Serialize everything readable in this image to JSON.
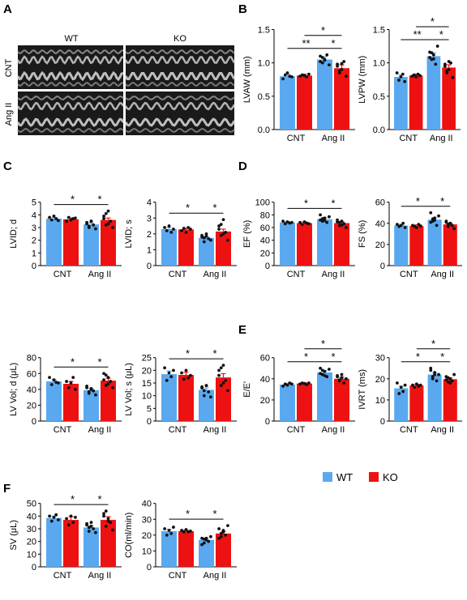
{
  "colors": {
    "wt": "#5aa9f0",
    "ko": "#ee1111",
    "dot": "#111111"
  },
  "legend": {
    "wt": "WT",
    "ko": "KO"
  },
  "echo": {
    "label": "A",
    "col_labels": [
      "WT",
      "KO"
    ],
    "row_labels": [
      "CNT",
      "Ang II"
    ]
  },
  "categories": [
    "CNT",
    "Ang II"
  ],
  "chart_data": [
    {
      "id": "lvaw",
      "panel": "B",
      "type": "bar",
      "ylabel": "LVAW (mm)",
      "ylim": [
        0,
        1.5
      ],
      "yticks": [
        0.0,
        0.5,
        1.0,
        1.5
      ],
      "tickfmt": "0.0",
      "series": [
        {
          "name": "WT",
          "values": [
            0.8,
            1.05
          ],
          "err": [
            0.03,
            0.04
          ]
        },
        {
          "name": "KO",
          "values": [
            0.81,
            0.92
          ],
          "err": [
            0.02,
            0.05
          ]
        }
      ],
      "points": [
        [
          [
            0.76,
            0.82,
            0.85,
            0.8,
            0.79
          ],
          [
            1.1,
            1.0,
            1.05,
            1.12,
            0.97,
            1.02,
            1.08,
            1.04
          ]
        ],
        [
          [
            0.8,
            0.82,
            0.81,
            0.79,
            0.83
          ],
          [
            0.98,
            0.85,
            0.9,
            1.02,
            0.8,
            0.95,
            0.88,
            0.99
          ]
        ]
      ],
      "sigs": [
        {
          "a": 0,
          "b": 2,
          "text": "**",
          "level": 0
        },
        {
          "a": 2,
          "b": 3,
          "text": "*",
          "level": 0
        },
        {
          "a": 1,
          "b": 3,
          "text": "*",
          "level": 1
        }
      ]
    },
    {
      "id": "lvpw",
      "panel": "",
      "type": "bar",
      "ylabel": "LVPW (mm)",
      "ylim": [
        0,
        1.5
      ],
      "yticks": [
        0.0,
        0.5,
        1.0,
        1.5
      ],
      "tickfmt": "0.0",
      "series": [
        {
          "name": "WT",
          "values": [
            0.79,
            1.1
          ],
          "err": [
            0.03,
            0.05
          ]
        },
        {
          "name": "KO",
          "values": [
            0.81,
            0.93
          ],
          "err": [
            0.02,
            0.04
          ]
        }
      ],
      "points": [
        [
          [
            0.85,
            0.74,
            0.79,
            0.83,
            0.72
          ],
          [
            1.16,
            1.05,
            1.12,
            0.98,
            1.25,
            1.08,
            1.15,
            1.06
          ]
        ],
        [
          [
            0.8,
            0.82,
            0.79,
            0.83,
            0.81
          ],
          [
            0.98,
            0.85,
            0.9,
            1.0,
            0.78,
            0.95,
            0.88,
            1.02
          ]
        ]
      ],
      "sigs": [
        {
          "a": 0,
          "b": 2,
          "text": "**",
          "level": 0
        },
        {
          "a": 2,
          "b": 3,
          "text": "*",
          "level": 0
        },
        {
          "a": 1,
          "b": 3,
          "text": "*",
          "level": 1
        }
      ]
    },
    {
      "id": "lvidd",
      "panel": "C",
      "type": "bar",
      "ylabel": "LVID; d",
      "ylim": [
        0,
        5
      ],
      "yticks": [
        0,
        1,
        2,
        3,
        4,
        5
      ],
      "tickfmt": "0",
      "series": [
        {
          "name": "WT",
          "values": [
            3.7,
            3.25
          ],
          "err": [
            0.1,
            0.1
          ]
        },
        {
          "name": "KO",
          "values": [
            3.65,
            3.6
          ],
          "err": [
            0.1,
            0.15
          ]
        }
      ],
      "points": [
        [
          [
            3.8,
            3.6,
            3.9,
            3.7,
            3.55
          ],
          [
            3.3,
            3.0,
            3.5,
            3.2,
            2.9,
            3.4,
            3.1,
            3.5
          ]
        ],
        [
          [
            3.5,
            3.8,
            3.6,
            3.7,
            3.75
          ],
          [
            3.9,
            3.2,
            4.3,
            3.5,
            3.0,
            3.7,
            4.1,
            3.3
          ]
        ]
      ],
      "sigs": [
        {
          "a": 0,
          "b": 2,
          "text": "*",
          "level": 0
        },
        {
          "a": 2,
          "b": 3,
          "text": "*",
          "level": 0
        }
      ]
    },
    {
      "id": "lvids",
      "panel": "",
      "type": "bar",
      "ylabel": "LVID; s",
      "ylim": [
        0,
        4
      ],
      "yticks": [
        0,
        1,
        2,
        3,
        4
      ],
      "tickfmt": "0",
      "series": [
        {
          "name": "WT",
          "values": [
            2.3,
            1.75
          ],
          "err": [
            0.1,
            0.1
          ]
        },
        {
          "name": "KO",
          "values": [
            2.28,
            2.15
          ],
          "err": [
            0.08,
            0.15
          ]
        }
      ],
      "points": [
        [
          [
            2.4,
            2.2,
            2.5,
            2.1,
            2.3
          ],
          [
            1.8,
            1.5,
            2.0,
            1.7,
            1.6,
            1.9,
            1.75,
            1.85
          ]
        ],
        [
          [
            2.2,
            2.35,
            2.1,
            2.4,
            2.3
          ],
          [
            2.5,
            1.9,
            2.9,
            2.1,
            1.6,
            2.3,
            2.6,
            2.0
          ]
        ]
      ],
      "sigs": [
        {
          "a": 0,
          "b": 2,
          "text": "*",
          "level": 0
        },
        {
          "a": 2,
          "b": 3,
          "text": "*",
          "level": 0
        }
      ]
    },
    {
      "id": "ef",
      "panel": "D",
      "type": "bar",
      "ylabel": "EF (%)",
      "ylim": [
        0,
        100
      ],
      "yticks": [
        0,
        20,
        40,
        60,
        80,
        100
      ],
      "tickfmt": "0",
      "series": [
        {
          "name": "WT",
          "values": [
            68,
            73
          ],
          "err": [
            1.5,
            2.0
          ]
        },
        {
          "name": "KO",
          "values": [
            67,
            67
          ],
          "err": [
            1.5,
            2.0
          ]
        }
      ],
      "points": [
        [
          [
            70,
            66,
            69,
            67,
            68
          ],
          [
            80,
            70,
            75,
            68,
            77,
            72,
            74,
            71
          ]
        ],
        [
          [
            68,
            65,
            69,
            67,
            66
          ],
          [
            72,
            63,
            70,
            66,
            60,
            69,
            68,
            64
          ]
        ]
      ],
      "sigs": [
        {
          "a": 0,
          "b": 2,
          "text": "*",
          "level": 0
        },
        {
          "a": 2,
          "b": 3,
          "text": "*",
          "level": 0
        }
      ]
    },
    {
      "id": "fs",
      "panel": "",
      "type": "bar",
      "ylabel": "FS (%)",
      "ylim": [
        0,
        60
      ],
      "yticks": [
        0,
        20,
        40,
        60
      ],
      "tickfmt": "0",
      "series": [
        {
          "name": "WT",
          "values": [
            38,
            43.5
          ],
          "err": [
            1.0,
            2.0
          ]
        },
        {
          "name": "KO",
          "values": [
            37.5,
            39
          ],
          "err": [
            1.0,
            1.2
          ]
        }
      ],
      "points": [
        [
          [
            39,
            37,
            38,
            40,
            36
          ],
          [
            50,
            42,
            45,
            38,
            47,
            41,
            44,
            43
          ]
        ],
        [
          [
            38,
            37,
            36,
            39,
            37.5
          ],
          [
            42,
            37,
            40,
            38,
            35,
            41,
            39,
            40
          ]
        ]
      ],
      "sigs": [
        {
          "a": 0,
          "b": 2,
          "text": "*",
          "level": 0
        },
        {
          "a": 2,
          "b": 3,
          "text": "*",
          "level": 0
        }
      ]
    },
    {
      "id": "lvvold",
      "panel": "",
      "type": "bar",
      "ylabel": "LV Vol; d (μL)",
      "ylim": [
        0,
        80
      ],
      "yticks": [
        0,
        20,
        40,
        60,
        80
      ],
      "tickfmt": "0",
      "series": [
        {
          "name": "WT",
          "values": [
            50,
            39
          ],
          "err": [
            2.5,
            2.0
          ]
        },
        {
          "name": "KO",
          "values": [
            47,
            51
          ],
          "err": [
            3,
            3
          ]
        }
      ],
      "points": [
        [
          [
            55,
            46,
            52,
            49,
            48
          ],
          [
            42,
            35,
            40,
            38,
            33,
            44,
            37,
            41
          ]
        ],
        [
          [
            50,
            42,
            48,
            55,
            40
          ],
          [
            60,
            45,
            55,
            50,
            42,
            52,
            58,
            47
          ]
        ]
      ],
      "sigs": [
        {
          "a": 0,
          "b": 2,
          "text": "*",
          "level": 0
        },
        {
          "a": 2,
          "b": 3,
          "text": "*",
          "level": 0
        }
      ]
    },
    {
      "id": "lvvols",
      "panel": "",
      "type": "bar",
      "ylabel": "LV Vol; s (μL)",
      "ylim": [
        0,
        25
      ],
      "yticks": [
        0,
        5,
        10,
        15,
        20,
        25
      ],
      "tickfmt": "0",
      "series": [
        {
          "name": "WT",
          "values": [
            18.5,
            12.3
          ],
          "err": [
            1.2,
            0.8
          ]
        },
        {
          "name": "KO",
          "values": [
            18.2,
            17.2
          ],
          "err": [
            1.0,
            1.5
          ]
        }
      ],
      "points": [
        [
          [
            21,
            16,
            19,
            17.5,
            20
          ],
          [
            13,
            10,
            14,
            11.5,
            9.5,
            13.5,
            12,
            14
          ]
        ],
        [
          [
            19,
            16.5,
            20,
            17,
            18
          ],
          [
            20,
            14,
            22,
            16,
            12,
            18,
            21,
            15
          ]
        ]
      ],
      "sigs": [
        {
          "a": 0,
          "b": 2,
          "text": "*",
          "level": 0
        },
        {
          "a": 2,
          "b": 3,
          "text": "*",
          "level": 0
        }
      ]
    },
    {
      "id": "ee",
      "panel": "E",
      "type": "bar",
      "ylabel": "E/E'",
      "ylim": [
        0,
        60
      ],
      "yticks": [
        0,
        20,
        40,
        60
      ],
      "tickfmt": "0",
      "series": [
        {
          "name": "WT",
          "values": [
            34.5,
            46
          ],
          "err": [
            1.0,
            1.8
          ]
        },
        {
          "name": "KO",
          "values": [
            35.5,
            40
          ],
          "err": [
            0.8,
            1.5
          ]
        }
      ],
      "points": [
        [
          [
            33,
            35,
            34,
            36,
            35
          ],
          [
            50,
            44,
            47,
            42,
            49,
            45,
            48,
            43
          ]
        ],
        [
          [
            35,
            36,
            35.5,
            34.5,
            36
          ],
          [
            43,
            38,
            41,
            36,
            40,
            42,
            39,
            44
          ]
        ]
      ],
      "sigs": [
        {
          "a": 0,
          "b": 2,
          "text": "*",
          "level": 0
        },
        {
          "a": 2,
          "b": 3,
          "text": "*",
          "level": 0
        },
        {
          "a": 1,
          "b": 3,
          "text": "*",
          "level": 1
        }
      ]
    },
    {
      "id": "ivrt",
      "panel": "",
      "type": "bar",
      "ylabel": "IVRT (ms)",
      "ylim": [
        0,
        30
      ],
      "yticks": [
        0,
        10,
        20,
        30
      ],
      "tickfmt": "0",
      "series": [
        {
          "name": "WT",
          "values": [
            15.5,
            22
          ],
          "err": [
            1.0,
            0.8
          ]
        },
        {
          "name": "KO",
          "values": [
            16.8,
            19.8
          ],
          "err": [
            0.6,
            0.6
          ]
        }
      ],
      "points": [
        [
          [
            18,
            13,
            16,
            14,
            17
          ],
          [
            24,
            20,
            23,
            19,
            22,
            25,
            21,
            22
          ]
        ],
        [
          [
            17,
            16,
            17.5,
            16.5,
            17
          ],
          [
            21,
            18.5,
            20,
            19,
            22,
            19.5,
            20.5,
            18
          ]
        ]
      ],
      "sigs": [
        {
          "a": 0,
          "b": 2,
          "text": "*",
          "level": 0
        },
        {
          "a": 2,
          "b": 3,
          "text": "*",
          "level": 0
        },
        {
          "a": 1,
          "b": 3,
          "text": "*",
          "level": 1
        }
      ]
    },
    {
      "id": "sv",
      "panel": "F",
      "type": "bar",
      "ylabel": "SV (μL)",
      "ylim": [
        0,
        50
      ],
      "yticks": [
        0,
        10,
        20,
        30,
        40,
        50
      ],
      "tickfmt": "0",
      "series": [
        {
          "name": "WT",
          "values": [
            38.5,
            31
          ],
          "err": [
            1.5,
            1.5
          ]
        },
        {
          "name": "KO",
          "values": [
            37,
            37
          ],
          "err": [
            2.5,
            2.5
          ]
        }
      ],
      "points": [
        [
          [
            40,
            36,
            39,
            41,
            37
          ],
          [
            34,
            28,
            32,
            30,
            27,
            33,
            31,
            35
          ]
        ],
        [
          [
            38,
            33,
            40,
            35,
            39
          ],
          [
            42,
            32,
            38,
            35,
            29,
            40,
            44,
            36
          ]
        ]
      ],
      "sigs": [
        {
          "a": 0,
          "b": 2,
          "text": "*",
          "level": 0
        },
        {
          "a": 2,
          "b": 3,
          "text": "*",
          "level": 0
        }
      ]
    },
    {
      "id": "co",
      "panel": "",
      "type": "bar",
      "ylabel": "CO(ml/min)",
      "ylim": [
        0,
        40
      ],
      "yticks": [
        0,
        10,
        20,
        30,
        40
      ],
      "tickfmt": "0",
      "series": [
        {
          "name": "WT",
          "values": [
            22.5,
            17
          ],
          "err": [
            1.2,
            1.0
          ]
        },
        {
          "name": "KO",
          "values": [
            22.5,
            21
          ],
          "err": [
            0.6,
            1.3
          ]
        }
      ],
      "points": [
        [
          [
            24,
            20,
            23,
            21,
            25
          ],
          [
            18,
            15,
            17,
            16,
            19,
            14,
            17.5,
            18
          ]
        ],
        [
          [
            23,
            22,
            23.5,
            22,
            22.5
          ],
          [
            24,
            19,
            22,
            20,
            26,
            18,
            21,
            23
          ]
        ]
      ],
      "sigs": [
        {
          "a": 0,
          "b": 2,
          "text": "*",
          "level": 0
        },
        {
          "a": 2,
          "b": 3,
          "text": "*",
          "level": 0
        }
      ]
    }
  ]
}
